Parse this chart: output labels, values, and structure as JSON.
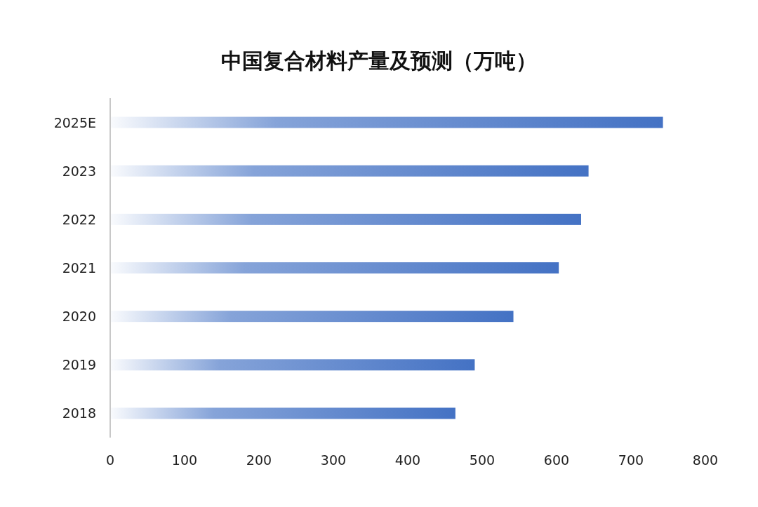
{
  "chart_data": {
    "type": "bar",
    "orientation": "horizontal",
    "title": "中国复合材料产量及预测（万吨）",
    "categories": [
      "2025E",
      "2023",
      "2022",
      "2021",
      "2020",
      "2019",
      "2018"
    ],
    "values": [
      743,
      643,
      633,
      603,
      542,
      490,
      464
    ],
    "color": "#4472c4",
    "xlim": [
      0,
      800
    ],
    "xticks": [
      0,
      100,
      200,
      300,
      400,
      500,
      600,
      700,
      800
    ],
    "grid": false
  }
}
